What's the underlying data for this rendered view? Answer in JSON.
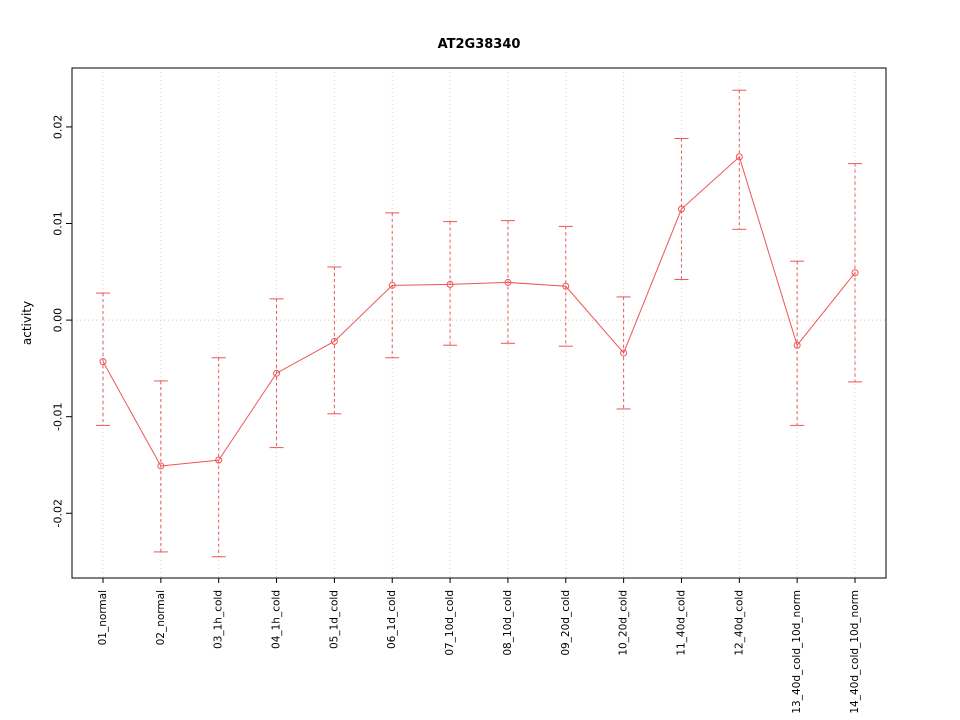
{
  "chart_data": {
    "type": "line",
    "title": "AT2G38340",
    "xlabel": "",
    "ylabel": "activity",
    "categories": [
      "01_normal",
      "02_normal",
      "03_1h_cold",
      "04_1h_cold",
      "05_1d_cold",
      "06_1d_cold",
      "07_10d_cold",
      "08_10d_cold",
      "09_20d_cold",
      "10_20d_cold",
      "11_40d_cold",
      "12_40d_cold",
      "13_40d_cold_10d_norm",
      "14_40d_cold_10d_norm"
    ],
    "values": [
      -0.0043,
      -0.0151,
      -0.0145,
      -0.0055,
      -0.0022,
      0.0036,
      0.0037,
      0.0039,
      0.0035,
      -0.0034,
      0.0115,
      0.0169,
      -0.0026,
      0.0049
    ],
    "error_low": [
      -0.0109,
      -0.024,
      -0.0245,
      -0.0132,
      -0.0097,
      -0.0039,
      -0.0026,
      -0.0024,
      -0.0027,
      -0.0092,
      0.0042,
      0.0094,
      -0.0109,
      -0.0064
    ],
    "error_high": [
      0.0028,
      -0.0063,
      -0.0039,
      0.0022,
      0.0055,
      0.0111,
      0.0102,
      0.0103,
      0.0097,
      0.0024,
      0.0188,
      0.0238,
      0.0061,
      0.0162
    ],
    "yticks": [
      "-0.02",
      "-0.01",
      "0.00",
      "0.01",
      "0.02"
    ],
    "ylim": [
      -0.0267,
      0.0261
    ],
    "zero_line": 0,
    "grid": true,
    "legend": "none",
    "marker": "open-circle",
    "colors": {
      "series": "#ee5555",
      "grid": "#d4d4d4",
      "zero": "#d9bcbc",
      "box": "#000000",
      "text": "#000000"
    }
  }
}
